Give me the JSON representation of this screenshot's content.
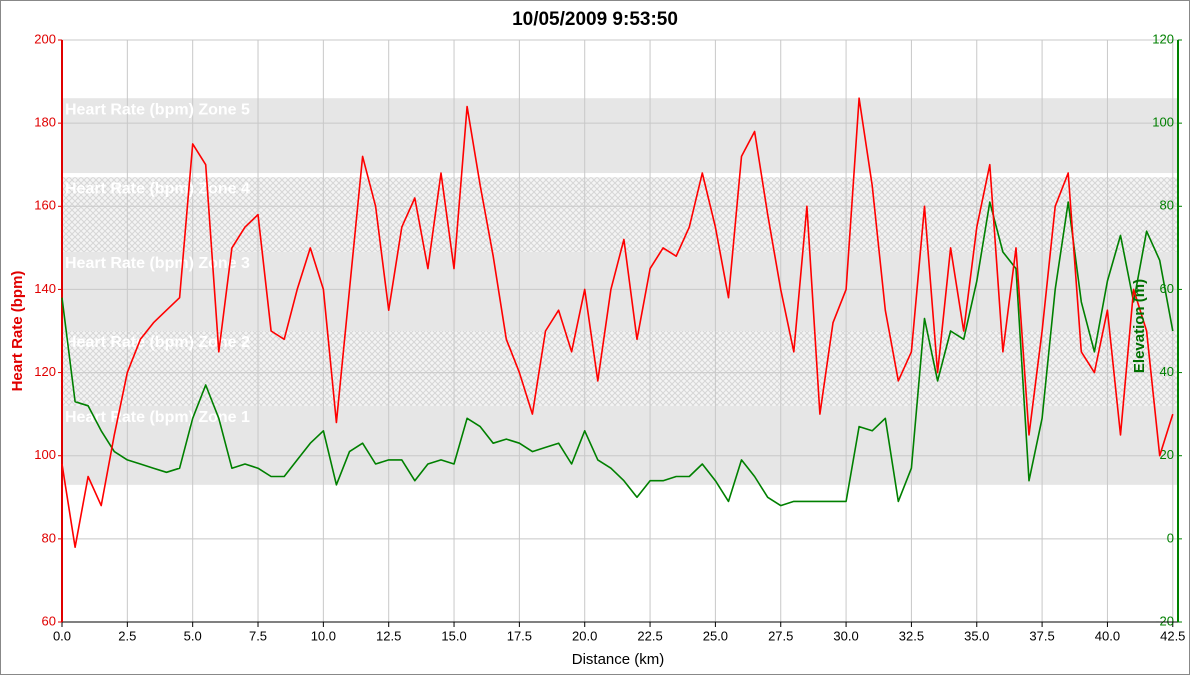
{
  "chart_data": {
    "type": "line",
    "title": "10/05/2009 9:53:50",
    "x_label": "Distance (km)",
    "y_label": "Heart Rate (bpm)",
    "y2_label": "Elevation (m)",
    "x": [
      0,
      0.5,
      1,
      1.5,
      2,
      2.5,
      3,
      3.5,
      4,
      4.5,
      5,
      5.5,
      6,
      6.5,
      7,
      7.5,
      8,
      8.5,
      9,
      9.5,
      10,
      10.5,
      11,
      11.5,
      12,
      12.5,
      13,
      13.5,
      14,
      14.5,
      15,
      15.5,
      16,
      16.5,
      17,
      17.5,
      18,
      18.5,
      19,
      19.5,
      20,
      20.5,
      21,
      21.5,
      22,
      22.5,
      23,
      23.5,
      24,
      24.5,
      25,
      25.5,
      26,
      26.5,
      27,
      27.5,
      28,
      28.5,
      29,
      29.5,
      30,
      30.5,
      31,
      31.5,
      32,
      32.5,
      33,
      33.5,
      34,
      34.5,
      35,
      35.5,
      36,
      36.5,
      37,
      37.5,
      38,
      38.5,
      39,
      39.5,
      40,
      40.5,
      41,
      41.5,
      42,
      42.5
    ],
    "series": [
      {
        "name": "Heart Rate (bpm)",
        "color": "#ff0000",
        "axis": "y",
        "values": [
          98,
          78,
          95,
          88,
          105,
          120,
          128,
          132,
          135,
          138,
          175,
          170,
          125,
          150,
          155,
          158,
          130,
          128,
          140,
          150,
          140,
          108,
          140,
          172,
          160,
          135,
          155,
          162,
          145,
          168,
          145,
          184,
          165,
          148,
          128,
          120,
          110,
          130,
          135,
          125,
          140,
          118,
          140,
          152,
          128,
          145,
          150,
          148,
          155,
          168,
          155,
          138,
          172,
          178,
          158,
          140,
          125,
          160,
          110,
          132,
          140,
          186,
          165,
          135,
          118,
          125,
          160,
          120,
          150,
          130,
          155,
          170,
          125,
          150,
          105,
          130,
          160,
          168,
          125,
          120,
          135,
          105,
          140,
          130,
          100,
          110
        ]
      },
      {
        "name": "Elevation (m)",
        "color": "#008000",
        "axis": "y2",
        "values": [
          58,
          33,
          32,
          26,
          21,
          19,
          18,
          17,
          16,
          17,
          29,
          37,
          29,
          17,
          18,
          17,
          15,
          15,
          19,
          23,
          26,
          13,
          21,
          23,
          18,
          19,
          19,
          14,
          18,
          19,
          18,
          29,
          27,
          23,
          24,
          23,
          21,
          22,
          23,
          18,
          26,
          19,
          17,
          14,
          10,
          14,
          14,
          15,
          15,
          18,
          14,
          9,
          19,
          15,
          10,
          8,
          9,
          9,
          9,
          9,
          9,
          27,
          26,
          29,
          9,
          17,
          53,
          38,
          50,
          48,
          62,
          81,
          69,
          65,
          14,
          29,
          60,
          81,
          57,
          45,
          62,
          73,
          57,
          74,
          67,
          50
        ]
      }
    ],
    "zones": [
      {
        "name": "Heart Rate (bpm) Zone 1",
        "from": 93,
        "to": 112,
        "style": "solid"
      },
      {
        "name": "Heart Rate (bpm) Zone 2",
        "from": 112,
        "to": 130,
        "style": "hatch"
      },
      {
        "name": "Heart Rate (bpm) Zone 3",
        "from": 130,
        "to": 149,
        "style": "solid"
      },
      {
        "name": "Heart Rate (bpm) Zone 4",
        "from": 149,
        "to": 167,
        "style": "hatch"
      },
      {
        "name": "Heart Rate (bpm) Zone 5",
        "from": 168,
        "to": 186,
        "style": "solid"
      }
    ],
    "xlim": [
      0,
      42.7
    ],
    "xticks": [
      {
        "value": 0,
        "label": "0.0"
      },
      2.5,
      {
        "value": 5,
        "label": "5.0"
      },
      7.5,
      {
        "value": 10,
        "label": "10.0"
      },
      12.5,
      {
        "value": 15,
        "label": "15.0"
      },
      17.5,
      {
        "value": 20,
        "label": "20.0"
      },
      22.5,
      {
        "value": 25,
        "label": "25.0"
      },
      27.5,
      {
        "value": 30,
        "label": "30.0"
      },
      32.5,
      {
        "value": 35,
        "label": "35.0"
      },
      37.5,
      {
        "value": 40,
        "label": "40.0"
      },
      42.5
    ],
    "ylim": [
      60,
      200
    ],
    "yticks": [
      60,
      80,
      100,
      120,
      140,
      160,
      180,
      200
    ],
    "y2lim": [
      -20,
      120
    ],
    "y2ticks": [
      -20,
      0,
      20,
      40,
      60,
      80,
      100,
      120
    ],
    "grid": true
  }
}
